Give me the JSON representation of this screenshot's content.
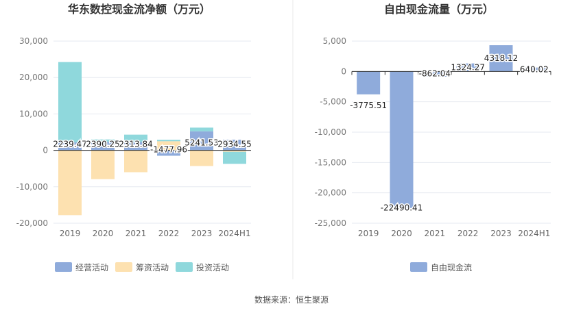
{
  "chart_data": [
    {
      "type": "bar",
      "stacked": true,
      "title": "华东数控现金流净额（万元）",
      "categories": [
        "2019",
        "2020",
        "2021",
        "2022",
        "2023",
        "2024H1"
      ],
      "series": [
        {
          "name": "经营活动",
          "color": "#8fabdb",
          "values": [
            2239.47,
            2390.25,
            2313.84,
            -1477.96,
            5241.53,
            2934.55
          ]
        },
        {
          "name": "筹资活动",
          "color": "#fde1b0",
          "values": [
            -17800,
            -7900,
            -6000,
            2500,
            -4300,
            -400
          ]
        },
        {
          "name": "投资活动",
          "color": "#8fd8dc",
          "values": [
            22000,
            600,
            2000,
            400,
            1000,
            -3300
          ]
        }
      ],
      "data_labels": [
        "2239.47",
        "2390.25",
        "2313.84",
        "-1477.96",
        "5241.53",
        "2934.55"
      ],
      "ylim": [
        -20000,
        30000
      ],
      "yticks": [
        30000,
        20000,
        10000,
        0,
        -10000,
        -20000
      ],
      "ytick_labels": [
        "30,000",
        "20,000",
        "10,000",
        "0",
        "-10,000",
        "-20,000"
      ],
      "xlabel": "",
      "ylabel": "",
      "legend": "bottom",
      "grid": true
    },
    {
      "type": "bar",
      "title": "自由现金流量（万元）",
      "categories": [
        "2019",
        "2020",
        "2021",
        "2022",
        "2023",
        "2024H1"
      ],
      "series": [
        {
          "name": "自由现金流",
          "color": "#8fabdb",
          "values": [
            -3775.51,
            -22490.41,
            -862.04,
            1324.27,
            4318.12,
            640.02
          ]
        }
      ],
      "data_labels": [
        "-3775.51",
        "-22490.41",
        "-862.04",
        "1324.27",
        "4318.12",
        "640.02"
      ],
      "ylim": [
        -25000,
        5000
      ],
      "yticks": [
        5000,
        0,
        -5000,
        -10000,
        -15000,
        -20000,
        -25000
      ],
      "ytick_labels": [
        "5,000",
        "0",
        "-5,000",
        "-10,000",
        "-15,000",
        "-20,000",
        "-25,000"
      ],
      "xlabel": "",
      "ylabel": "",
      "legend": "bottom",
      "grid": true
    }
  ],
  "footer": "数据来源：恒生聚源"
}
